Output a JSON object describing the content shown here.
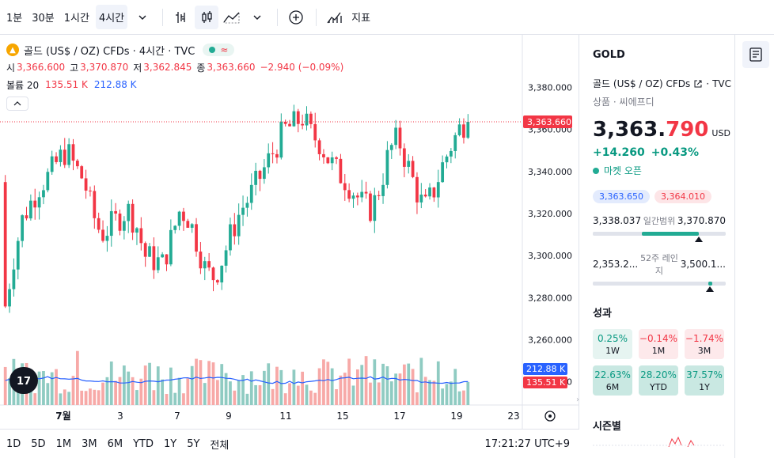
{
  "toolbar": {
    "intervals": [
      "1분",
      "30분",
      "1시간",
      "4시간"
    ],
    "active_interval": "4시간",
    "indicators_label": "지표"
  },
  "legend": {
    "title": "골드 (US$ / OZ) CFDs · 4시간 · TVC",
    "ohlc": {
      "open_label": "시",
      "open": "3,366.600",
      "high_label": "고",
      "high": "3,370.870",
      "low_label": "저",
      "low": "3,362.845",
      "close_label": "종",
      "close": "3,363.660",
      "change": "−2.940 (−0.09%)"
    },
    "volume": {
      "label": "볼륨 20",
      "value1": "135.51 K",
      "value2": "212.88 K"
    }
  },
  "chart_data": {
    "type": "candlestick",
    "price_axis": {
      "ticks": [
        "3,380.000",
        "3,360.000",
        "3,340.000",
        "3,320.000",
        "3,300.000",
        "3,280.000",
        "3,260.000",
        "3,240.000"
      ],
      "range": [
        3232,
        3390
      ]
    },
    "time_axis": {
      "ticks": [
        "7월",
        "3",
        "7",
        "9",
        "11",
        "15",
        "17",
        "19",
        "23"
      ]
    },
    "last_price": "3,363.660",
    "volume_labels": {
      "ma": "212.88 K",
      "last": "135.51 K"
    },
    "colors": {
      "up": "#22ab94",
      "down": "#f23645",
      "vol_up": "#8fcbc2",
      "vol_down": "#f7a9a7",
      "vol_ma": "#2962ff"
    }
  },
  "bottombar": {
    "ranges": [
      "1D",
      "5D",
      "1M",
      "3M",
      "6M",
      "YTD",
      "1Y",
      "5Y",
      "전체"
    ],
    "time": "17:21:27 UTC+9"
  },
  "sidebar": {
    "symbol": "GOLD",
    "name": "골드 (US$ / OZ) CFDs",
    "exchange": "TVC",
    "category": "상품 · 씨에프디",
    "price_int": "3,363.",
    "price_dec": "790",
    "currency": "USD",
    "change_abs": "+14.260",
    "change_pct": "+0.43%",
    "market_status": "마켓 오픈",
    "bid": "3,363.650",
    "ask": "3,364.010",
    "day_range": {
      "low": "3,338.037",
      "label": "일간범위",
      "high": "3,370.870",
      "position": 0.8
    },
    "week52_range": {
      "low": "2,353.2...",
      "label_1": "52주 레인",
      "label_2": "지",
      "high": "3,500.1...",
      "position": 0.88
    },
    "performance_title": "성과",
    "performance": [
      {
        "value": "0.25%",
        "period": "1W",
        "dir": "up"
      },
      {
        "value": "−0.14%",
        "period": "1M",
        "dir": "down"
      },
      {
        "value": "−1.74%",
        "period": "3M",
        "dir": "down"
      },
      {
        "value": "22.63%",
        "period": "6M",
        "dir": "up"
      },
      {
        "value": "28.20%",
        "period": "YTD",
        "dir": "up"
      },
      {
        "value": "37.57%",
        "period": "1Y",
        "dir": "up"
      }
    ],
    "seasonal_title": "시즌별"
  }
}
